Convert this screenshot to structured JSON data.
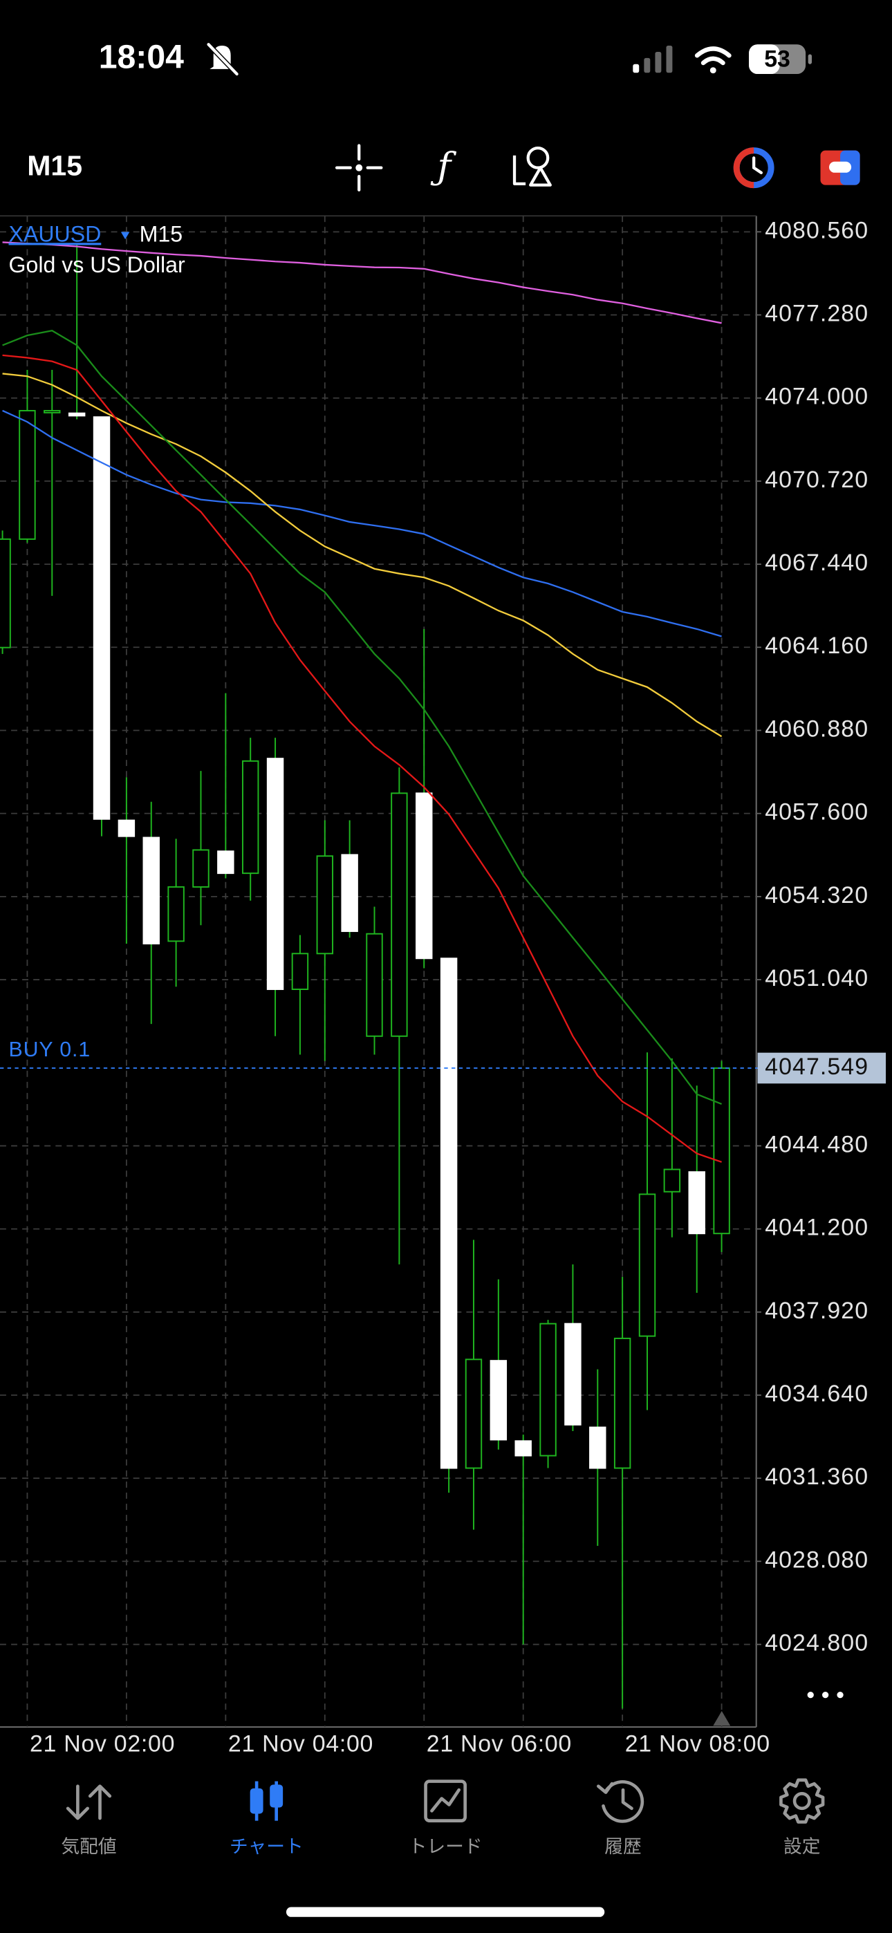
{
  "status_bar": {
    "time": "18:04",
    "battery": "53"
  },
  "toolbar": {
    "timeframe": "M15"
  },
  "chart_data": {
    "type": "candlestick",
    "symbol": "XAUUSD",
    "timeframe": "M15",
    "description": "Gold vs US Dollar",
    "categories": [
      null,
      "21 Nov 02:00",
      null,
      null,
      null,
      null,
      null,
      null,
      null,
      "21 Nov 04:00",
      null,
      null,
      null,
      null,
      null,
      null,
      null,
      "21 Nov 06:00",
      null,
      null,
      null,
      null,
      null,
      null,
      null,
      "21 Nov 08:00",
      null,
      null,
      null,
      null
    ],
    "open": [
      4064.15,
      4068.43,
      4073.45,
      4073.4,
      4073.25,
      4057.33,
      4056.65,
      4052.56,
      4054.7,
      4056.11,
      4055.24,
      4059.77,
      4050.66,
      4052.07,
      4055.97,
      4048.81,
      4048.81,
      4058.4,
      4051.88,
      4031.76,
      4036.0,
      4032.83,
      4032.25,
      4037.46,
      4033.37,
      4031.76,
      4036.97,
      4042.67,
      4043.45,
      4041.02
    ],
    "high": [
      4068.77,
      4075.11,
      4075.11,
      4080.12,
      4073.25,
      4059.03,
      4058.06,
      4056.6,
      4059.28,
      4062.35,
      4060.59,
      4060.59,
      4052.8,
      4057.33,
      4057.33,
      4053.92,
      4059.42,
      4064.88,
      4051.88,
      4040.77,
      4039.21,
      4033.08,
      4037.61,
      4039.8,
      4035.66,
      4039.31,
      4048.17,
      4047.93,
      4046.86,
      4047.83
    ],
    "low": [
      4063.9,
      4068.29,
      4066.19,
      4073.16,
      4056.7,
      4052.46,
      4049.29,
      4050.76,
      4053.19,
      4055.04,
      4054.16,
      4048.81,
      4048.08,
      4047.83,
      4052.7,
      4048.08,
      4039.8,
      4051.49,
      4030.79,
      4029.33,
      4032.49,
      4024.8,
      4031.76,
      4033.22,
      4028.69,
      4022.27,
      4034.05,
      4040.87,
      4038.68,
      4040.29
    ],
    "close": [
      4068.43,
      4073.5,
      4073.5,
      4073.3,
      4057.38,
      4056.7,
      4052.46,
      4054.7,
      4056.16,
      4055.24,
      4059.67,
      4050.66,
      4052.07,
      4055.92,
      4052.95,
      4052.85,
      4058.4,
      4051.88,
      4031.76,
      4036.05,
      4032.88,
      4032.25,
      4037.46,
      4033.47,
      4031.76,
      4036.88,
      4042.57,
      4043.55,
      4041.02,
      4047.549
    ],
    "up_color": "#000000",
    "down_color": "#ffffff",
    "wick_color": "#1fb51f",
    "lines": [
      {
        "color": "#e060e0",
        "values": [
          4080.15,
          4080.1,
          4080.05,
          4079.98,
          4079.88,
          4079.8,
          4079.73,
          4079.66,
          4079.61,
          4079.53,
          4079.46,
          4079.39,
          4079.34,
          4079.26,
          4079.21,
          4079.16,
          4079.15,
          4079.1,
          4078.9,
          4078.71,
          4078.56,
          4078.37,
          4078.22,
          4078.08,
          4077.88,
          4077.74,
          4077.54,
          4077.35,
          4077.15,
          4076.96
        ]
      },
      {
        "color": "#2f6ff0",
        "values": [
          4073.5,
          4073.06,
          4072.43,
          4071.94,
          4071.45,
          4070.97,
          4070.58,
          4070.24,
          4069.99,
          4069.89,
          4069.85,
          4069.75,
          4069.6,
          4069.36,
          4069.11,
          4068.97,
          4068.82,
          4068.63,
          4068.19,
          4067.75,
          4067.31,
          4066.92,
          4066.68,
          4066.34,
          4065.95,
          4065.56,
          4065.37,
          4065.12,
          4064.88,
          4064.59
        ]
      },
      {
        "color": "#f2cc3c",
        "values": [
          4074.96,
          4074.86,
          4074.52,
          4074.03,
          4073.5,
          4073.01,
          4072.57,
          4072.18,
          4071.7,
          4071.06,
          4070.33,
          4069.51,
          4068.77,
          4068.14,
          4067.7,
          4067.26,
          4067.07,
          4066.92,
          4066.58,
          4066.1,
          4065.61,
          4065.22,
          4064.64,
          4063.9,
          4063.27,
          4062.93,
          4062.59,
          4061.96,
          4061.23,
          4060.64
        ]
      },
      {
        "color": "#e41818",
        "values": [
          4075.69,
          4075.59,
          4075.45,
          4075.11,
          4073.89,
          4072.67,
          4071.45,
          4070.33,
          4069.51,
          4068.29,
          4067.07,
          4065.12,
          4063.66,
          4062.44,
          4061.23,
          4060.25,
          4059.52,
          4058.64,
          4057.57,
          4056.11,
          4054.65,
          4052.7,
          4050.76,
          4048.81,
          4047.25,
          4046.23,
          4045.64,
          4044.91,
          4044.18,
          4043.84
        ]
      },
      {
        "color": "#1a8c1a",
        "values": [
          4076.08,
          4076.47,
          4076.66,
          4076.08,
          4074.86,
          4073.89,
          4072.91,
          4071.94,
          4070.97,
          4069.99,
          4069.02,
          4068.04,
          4067.07,
          4066.34,
          4065.12,
          4063.9,
          4062.93,
          4061.71,
          4060.25,
          4058.55,
          4056.84,
          4055.14,
          4053.92,
          4052.7,
          4051.49,
          4050.27,
          4049.05,
          4047.83,
          4046.52,
          4046.13
        ]
      }
    ],
    "ylim": [
      4021.54,
      4081.19
    ],
    "yticks": [
      {
        "value": 4080.56,
        "label": "4080.560"
      },
      {
        "value": 4077.28,
        "label": "4077.280"
      },
      {
        "value": 4074,
        "label": "4074.000"
      },
      {
        "value": 4070.72,
        "label": "4070.720"
      },
      {
        "value": 4067.44,
        "label": "4067.440"
      },
      {
        "value": 4064.16,
        "label": "4064.160"
      },
      {
        "value": 4060.88,
        "label": "4060.880"
      },
      {
        "value": 4057.6,
        "label": "4057.600"
      },
      {
        "value": 4054.32,
        "label": "4054.320"
      },
      {
        "value": 4051.04,
        "label": "4051.040"
      },
      {
        "value": 4044.48,
        "label": "4044.480"
      },
      {
        "value": 4041.2,
        "label": "4041.200"
      },
      {
        "value": 4037.92,
        "label": "4037.920"
      },
      {
        "value": 4034.64,
        "label": "4034.640"
      },
      {
        "value": 4031.36,
        "label": "4031.360"
      },
      {
        "value": 4028.08,
        "label": "4028.080"
      },
      {
        "value": 4024.8,
        "label": "4024.800"
      }
    ],
    "grid": true,
    "current_price": 4047.549,
    "price_tag_color": "#b4c4d8",
    "order": {
      "label": "BUY 0.1",
      "price": 4047.55,
      "color": "#2f7cf6"
    }
  },
  "tab_bar": {
    "tabs": [
      {
        "label": "気配値"
      },
      {
        "label": "チャート"
      },
      {
        "label": "トレード"
      },
      {
        "label": "履歴"
      },
      {
        "label": "設定"
      }
    ],
    "active": 1
  }
}
